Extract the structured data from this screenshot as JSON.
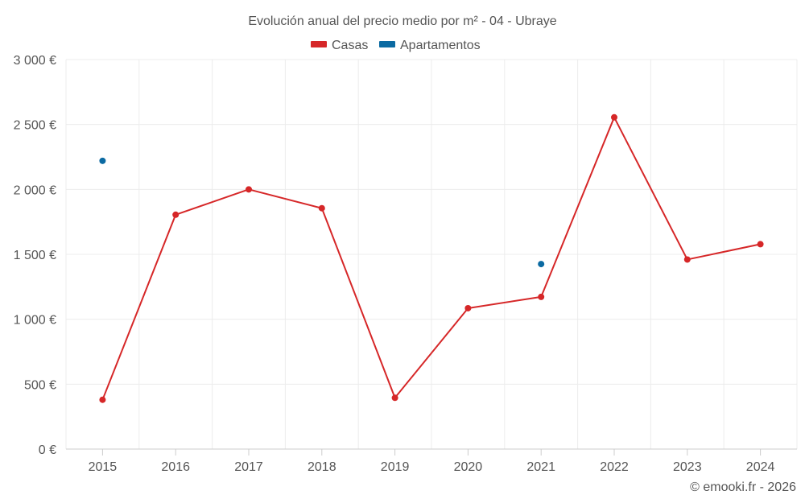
{
  "chart_data": {
    "type": "line",
    "title": "Evolución anual del precio medio por m² - 04 - Ubraye",
    "categories": [
      "2015",
      "2016",
      "2017",
      "2018",
      "2019",
      "2020",
      "2021",
      "2022",
      "2023",
      "2024"
    ],
    "series": [
      {
        "name": "Casas",
        "color": "#d62728",
        "values": [
          380,
          1805,
          2000,
          1855,
          395,
          1085,
          1172,
          2555,
          1460,
          1578
        ],
        "show_line": true
      },
      {
        "name": "Apartamentos",
        "color": "#0b6aa2",
        "values": [
          2220,
          null,
          null,
          null,
          null,
          null,
          1425,
          null,
          null,
          null
        ],
        "show_line": false
      }
    ],
    "ylim": [
      0,
      3000
    ],
    "yticks": [
      0,
      500,
      1000,
      1500,
      2000,
      2500,
      3000
    ],
    "ytick_labels": [
      "0 €",
      "500 €",
      "1 000 €",
      "1 500 €",
      "2 000 €",
      "2 500 €",
      "3 000 €"
    ],
    "xlabel": "",
    "ylabel": "",
    "grid": true,
    "legend_position": "top-center"
  },
  "credit": "© emooki.fr - 2026"
}
